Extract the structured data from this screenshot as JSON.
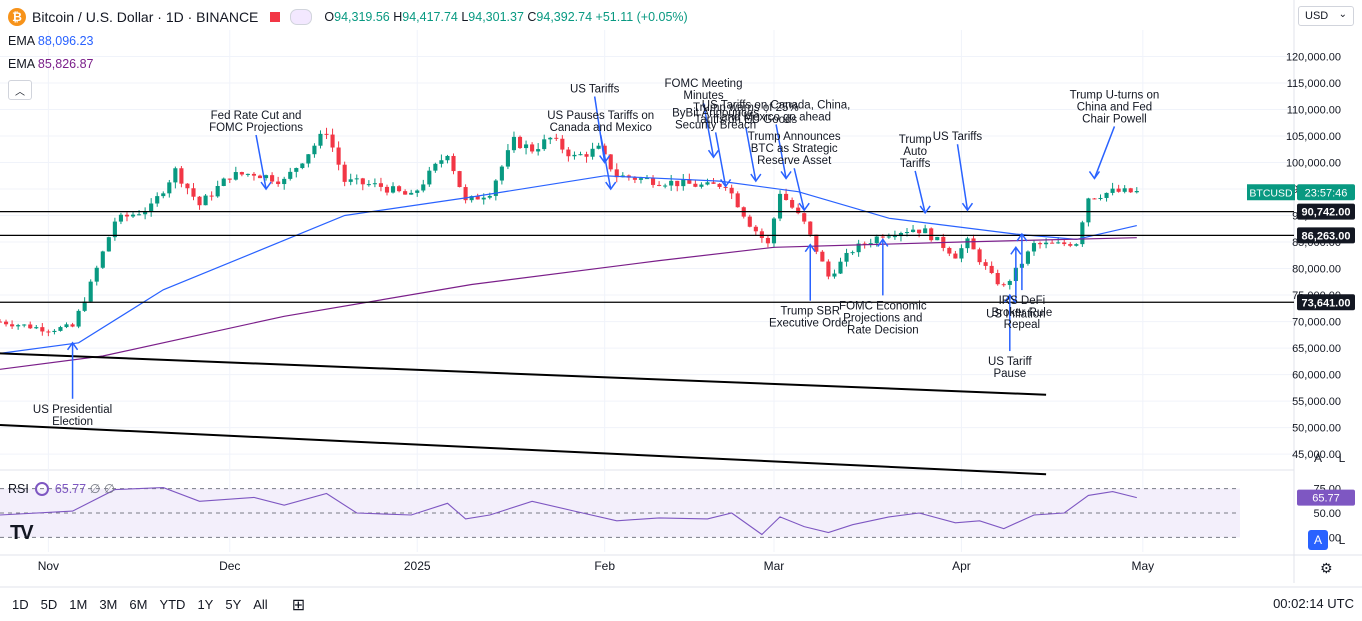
{
  "header": {
    "logo_glyph": "₿",
    "symbol": "Bitcoin / U.S. Dollar · 1D · BINANCE",
    "ohlc": {
      "o_label": "O",
      "o": "94,319.56",
      "h_label": "H",
      "h": "94,417.74",
      "l_label": "L",
      "l": "94,301.37",
      "c_label": "C",
      "c": "94,392.74",
      "change": "+51.11 (+0.05%)"
    }
  },
  "indicators": {
    "ema1": {
      "label": "EMA",
      "value": "88,096.23",
      "color": "#2962ff"
    },
    "ema2": {
      "label": "EMA",
      "value": "85,826.87",
      "color": "#7b1f8a"
    },
    "rsi": {
      "label": "RSI",
      "value": "65.77",
      "extra1": "∅",
      "extra2": "∅",
      "color": "#7e57c2"
    }
  },
  "currency": "USD",
  "collapse_glyph": "︿",
  "tv_logo": "TV",
  "scale_buttons": {
    "auto": "A",
    "log": "L"
  },
  "bottom": {
    "ranges": [
      "1D",
      "5D",
      "1M",
      "3M",
      "6M",
      "YTD",
      "1Y",
      "5Y",
      "All"
    ],
    "clock": "00:02:14 UTC",
    "gear_icon": "⚙",
    "calendar_icon": "⊞"
  },
  "colors": {
    "up": "#089981",
    "down": "#f23645",
    "ema1": "#2962ff",
    "ema2": "#7b1f8a",
    "rsi": "#7e57c2",
    "annotation": "#2962ff"
  },
  "chart_data": {
    "type": "candlestick",
    "title": "Bitcoin / U.S. Dollar · 1D · BINANCE",
    "x_range": [
      "2024-10-24",
      "2025-05-26"
    ],
    "y_range": [
      42000,
      125000
    ],
    "y_ticks": [
      45000,
      50000,
      55000,
      60000,
      65000,
      70000,
      75000,
      80000,
      85000,
      90000,
      95000,
      100000,
      105000,
      110000,
      115000,
      120000
    ],
    "y_tick_labels": [
      "45,000.00",
      "50,000.00",
      "55,000.00",
      "60,000.00",
      "65,000.00",
      "70,000.00",
      "75,000.00",
      "80,000.00",
      "85,000.00",
      "90,000.00",
      "95,000.00",
      "100,000.00",
      "105,000.00",
      "110,000.00",
      "115,000.00",
      "120,000.00"
    ],
    "x_ticks": [
      {
        "date": "2024-11-01",
        "label": "Nov"
      },
      {
        "date": "2024-12-01",
        "label": "Dec"
      },
      {
        "date": "2025-01-01",
        "label": "2025"
      },
      {
        "date": "2025-02-01",
        "label": "Feb"
      },
      {
        "date": "2025-03-01",
        "label": "Mar"
      },
      {
        "date": "2025-04-01",
        "label": "Apr"
      },
      {
        "date": "2025-05-01",
        "label": "May"
      }
    ],
    "price_path": [
      [
        "2024-10-24",
        70000
      ],
      [
        "2024-11-01",
        68500
      ],
      [
        "2024-11-05",
        69000
      ],
      [
        "2024-11-08",
        77000
      ],
      [
        "2024-11-12",
        89000
      ],
      [
        "2024-11-18",
        91500
      ],
      [
        "2024-11-22",
        98500
      ],
      [
        "2024-11-26",
        92000
      ],
      [
        "2024-12-01",
        97500
      ],
      [
        "2024-12-05",
        98000
      ],
      [
        "2024-12-10",
        96500
      ],
      [
        "2024-12-17",
        106000
      ],
      [
        "2024-12-20",
        96500
      ],
      [
        "2024-12-26",
        95500
      ],
      [
        "2024-12-31",
        93500
      ],
      [
        "2025-01-06",
        102000
      ],
      [
        "2025-01-09",
        92500
      ],
      [
        "2025-01-13",
        94500
      ],
      [
        "2025-01-17",
        104000
      ],
      [
        "2025-01-20",
        102500
      ],
      [
        "2025-01-23",
        104500
      ],
      [
        "2025-01-27",
        101000
      ],
      [
        "2025-01-31",
        102500
      ],
      [
        "2025-02-03",
        97500
      ],
      [
        "2025-02-10",
        96500
      ],
      [
        "2025-02-18",
        95500
      ],
      [
        "2025-02-21",
        96000
      ],
      [
        "2025-02-25",
        88500
      ],
      [
        "2025-02-28",
        84500
      ],
      [
        "2025-03-02",
        94500
      ],
      [
        "2025-03-06",
        88500
      ],
      [
        "2025-03-10",
        78500
      ],
      [
        "2025-03-14",
        83500
      ],
      [
        "2025-03-19",
        86500
      ],
      [
        "2025-03-24",
        87500
      ],
      [
        "2025-03-26",
        87000
      ],
      [
        "2025-03-31",
        82500
      ],
      [
        "2025-04-02",
        85000
      ],
      [
        "2025-04-06",
        78500
      ],
      [
        "2025-04-08",
        76500
      ],
      [
        "2025-04-10",
        79500
      ],
      [
        "2025-04-13",
        84500
      ],
      [
        "2025-04-17",
        84500
      ],
      [
        "2025-04-20",
        85000
      ],
      [
        "2025-04-22",
        93500
      ],
      [
        "2025-04-26",
        94500
      ],
      [
        "2025-04-30",
        94392.74
      ]
    ],
    "ema1_path": [
      [
        "2024-10-24",
        64000
      ],
      [
        "2024-11-06",
        66000
      ],
      [
        "2024-11-20",
        76000
      ],
      [
        "2024-12-05",
        83000
      ],
      [
        "2024-12-20",
        90000
      ],
      [
        "2025-01-10",
        93500
      ],
      [
        "2025-02-01",
        97500
      ],
      [
        "2025-02-20",
        96500
      ],
      [
        "2025-03-05",
        94500
      ],
      [
        "2025-03-20",
        89500
      ],
      [
        "2025-04-10",
        86500
      ],
      [
        "2025-04-20",
        85500
      ],
      [
        "2025-04-30",
        88096.23
      ]
    ],
    "ema2_path": [
      [
        "2024-10-24",
        61000
      ],
      [
        "2024-11-10",
        63500
      ],
      [
        "2024-12-10",
        71000
      ],
      [
        "2025-01-10",
        77000
      ],
      [
        "2025-02-10",
        81500
      ],
      [
        "2025-03-01",
        84000
      ],
      [
        "2025-04-01",
        85000
      ],
      [
        "2025-04-30",
        85826.87
      ]
    ],
    "rsi_path": [
      [
        "2024-10-24",
        48
      ],
      [
        "2024-11-05",
        52
      ],
      [
        "2024-11-12",
        74
      ],
      [
        "2024-11-20",
        76
      ],
      [
        "2024-11-26",
        62
      ],
      [
        "2024-12-05",
        66
      ],
      [
        "2024-12-10",
        58
      ],
      [
        "2024-12-17",
        70
      ],
      [
        "2024-12-22",
        50
      ],
      [
        "2024-12-31",
        48
      ],
      [
        "2025-01-06",
        60
      ],
      [
        "2025-01-09",
        44
      ],
      [
        "2025-01-13",
        48
      ],
      [
        "2025-01-20",
        62
      ],
      [
        "2025-01-27",
        52
      ],
      [
        "2025-02-03",
        42
      ],
      [
        "2025-02-10",
        45
      ],
      [
        "2025-02-18",
        44
      ],
      [
        "2025-02-22",
        50
      ],
      [
        "2025-02-27",
        28
      ],
      [
        "2025-03-02",
        46
      ],
      [
        "2025-03-06",
        36
      ],
      [
        "2025-03-10",
        30
      ],
      [
        "2025-03-14",
        38
      ],
      [
        "2025-03-20",
        46
      ],
      [
        "2025-03-25",
        50
      ],
      [
        "2025-03-31",
        40
      ],
      [
        "2025-04-04",
        42
      ],
      [
        "2025-04-08",
        34
      ],
      [
        "2025-04-13",
        48
      ],
      [
        "2025-04-18",
        50
      ],
      [
        "2025-04-22",
        68
      ],
      [
        "2025-04-26",
        72
      ],
      [
        "2025-04-30",
        65.77
      ]
    ],
    "rsi_ticks": [
      {
        "value": 75,
        "label": "75.00"
      },
      {
        "value": 50,
        "label": "50.00"
      },
      {
        "value": 25,
        "label": "25.00"
      }
    ],
    "rsi_last": "65.77",
    "hlines": [
      {
        "value": 90742,
        "label": "90,742.00"
      },
      {
        "value": 86263,
        "label": "86,263.00"
      },
      {
        "value": 73641,
        "label": "73,641.00"
      }
    ],
    "price_tag": {
      "symbol": "BTCUSD",
      "time": "23:57:46"
    },
    "trendlines": [
      {
        "from": [
          "2024-10-24",
          64000
        ],
        "to": [
          "2025-04-15",
          56200
        ]
      },
      {
        "from": [
          "2024-10-24",
          50500
        ],
        "to": [
          "2025-04-15",
          41200
        ]
      }
    ],
    "annotations": [
      {
        "text": "US Presidential\nElection",
        "at": [
          "2024-11-05",
          66000
        ]
      },
      {
        "text": "Fed Rate Cut and\nFOMC Projections",
        "at": [
          "2024-12-07",
          95000
        ]
      },
      {
        "text": "US Tariffs",
        "at": [
          "2025-02-01",
          100000
        ]
      },
      {
        "text": "US Pauses Tariffs on\nCanada and Mexico",
        "at": [
          "2025-02-02",
          95000
        ]
      },
      {
        "text": "FOMC Meeting\nMinutes",
        "at": [
          "2025-02-19",
          101000
        ]
      },
      {
        "text": "Trump warns of 25%\nTariffs on EU Goods",
        "at": [
          "2025-02-26",
          96500
        ]
      },
      {
        "text": "ByBit Announces\nSecurity Breach",
        "at": [
          "2025-02-21",
          95500
        ]
      },
      {
        "text": "US Tariffs on Canada, China,\nand Mexico go ahead",
        "at": [
          "2025-03-03",
          97000
        ]
      },
      {
        "text": "Trump Announces\nBTC as Strategic\nReserve Asset",
        "at": [
          "2025-03-06",
          91000
        ]
      },
      {
        "text": "Trump SBR\nExecutive Order",
        "at": [
          "2025-03-07",
          84500
        ]
      },
      {
        "text": "FOMC Economic\nProjections and\nRate Decision",
        "at": [
          "2025-03-19",
          85500
        ]
      },
      {
        "text": "Trump\nAuto\nTariffs",
        "at": [
          "2025-03-26",
          90500
        ]
      },
      {
        "text": "US Tariffs",
        "at": [
          "2025-04-02",
          91000
        ]
      },
      {
        "text": "US Inflation",
        "at": [
          "2025-04-10",
          84000
        ]
      },
      {
        "text": "US Tariff\nPause",
        "at": [
          "2025-04-09",
          75000
        ]
      },
      {
        "text": "IRS DeFi\nBroker Rule\nRepeal",
        "at": [
          "2025-04-11",
          86500
        ]
      },
      {
        "text": "Trump U-turns on\nChina and Fed\nChair Powell",
        "at": [
          "2025-04-23",
          97000
        ]
      }
    ]
  }
}
